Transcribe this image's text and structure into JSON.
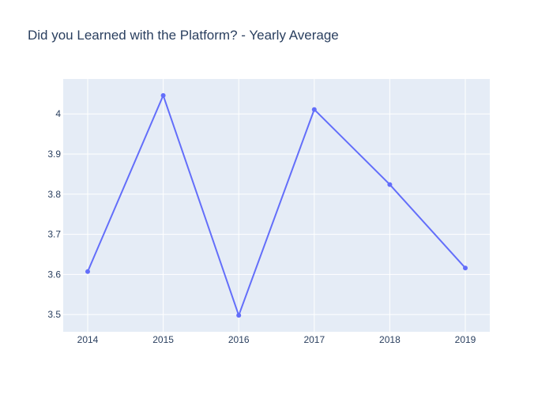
{
  "chart_data": {
    "type": "line",
    "title": "Did you Learned with the Platform?  - Yearly Average",
    "xlabel": "",
    "ylabel": "",
    "x": [
      "2014",
      "2015",
      "2016",
      "2017",
      "2018",
      "2019"
    ],
    "series": [
      {
        "values": [
          3.607,
          4.046,
          3.498,
          4.011,
          3.824,
          3.616
        ],
        "color": "#636efa"
      }
    ],
    "y_ticks": [
      "3.5",
      "3.6",
      "3.7",
      "3.8",
      "3.9",
      "4"
    ],
    "ylim": [
      3.457,
      4.087
    ],
    "grid": true,
    "legend": "none",
    "colors": {
      "plot_background": "#e5ecf6",
      "grid": "#ffffff",
      "text": "#2a3f5f",
      "line": "#636efa"
    }
  }
}
